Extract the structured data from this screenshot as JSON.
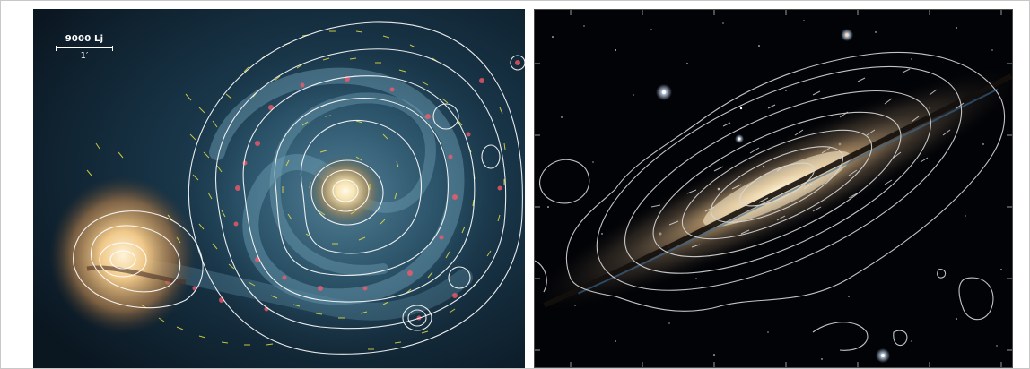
{
  "left_image": {
    "scale_bar": {
      "distance_label": "9000 Lj",
      "angle_label": "1′"
    },
    "colors": {
      "contours": "#ffffff",
      "polarization_vectors": "#e8e040",
      "hii_regions": "#ff5a6a",
      "background": "#0c1a24"
    }
  },
  "right_image": {
    "colors": {
      "contours": "#d8d8d8",
      "polarization_vectors": "#e0e0e0",
      "background": "#020306"
    }
  }
}
